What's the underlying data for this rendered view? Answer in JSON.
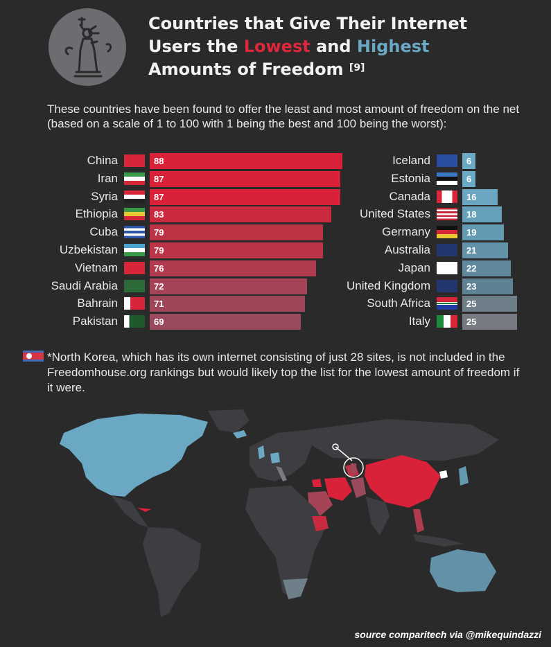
{
  "header": {
    "title_line1": "Countries that Give Their Internet",
    "title_line2_pre": "Users the ",
    "title_low": "Lowest",
    "title_and": " and ",
    "title_high": "Highest",
    "title_line3": "Amounts of Freedom ",
    "title_ref": "[9]",
    "intro": "These countries have been found to offer the least and most amount of freedom on the net (based on a scale of 1 to 100 with 1 being the best and 100 being the worst):"
  },
  "chart_data": [
    {
      "type": "bar",
      "orientation": "horizontal",
      "categories": [
        "China",
        "Iran",
        "Syria",
        "Ethiopia",
        "Cuba",
        "Uzbekistan",
        "Vietnam",
        "Saudi Arabia",
        "Bahrain",
        "Pakistan"
      ],
      "values": [
        88,
        87,
        87,
        83,
        79,
        79,
        76,
        72,
        71,
        69
      ],
      "colors": [
        "#d9213a",
        "#d9213a",
        "#d9213a",
        "#c92a3f",
        "#bd3346",
        "#bb3447",
        "#b03a4e",
        "#a54456",
        "#a04659",
        "#9b495d"
      ]
    },
    {
      "type": "bar",
      "orientation": "horizontal",
      "categories": [
        "Iceland",
        "Estonia",
        "Canada",
        "United States",
        "Germany",
        "Australia",
        "Japan",
        "United Kingdom",
        "South Africa",
        "Italy"
      ],
      "values": [
        6,
        6,
        16,
        18,
        19,
        21,
        22,
        23,
        25,
        25
      ],
      "colors": [
        "#6aaac6",
        "#6aaac6",
        "#6aa6c2",
        "#67a0bb",
        "#6499b2",
        "#6291a8",
        "#60899e",
        "#5e8194",
        "#6f7f8a",
        "#777a80"
      ]
    }
  ],
  "flags": {
    "China": "flag-china-icon",
    "Iran": "flag-iran-icon",
    "Syria": "flag-syria-icon",
    "Ethiopia": "flag-ethiopia-icon",
    "Cuba": "flag-cuba-icon",
    "Uzbekistan": "flag-uzbekistan-icon",
    "Vietnam": "flag-vietnam-icon",
    "Saudi Arabia": "flag-saudi-arabia-icon",
    "Bahrain": "flag-bahrain-icon",
    "Pakistan": "flag-pakistan-icon",
    "Iceland": "flag-iceland-icon",
    "Estonia": "flag-estonia-icon",
    "Canada": "flag-canada-icon",
    "United States": "flag-united-states-icon",
    "Germany": "flag-germany-icon",
    "Australia": "flag-australia-icon",
    "Japan": "flag-japan-icon",
    "United Kingdom": "flag-united-kingdom-icon",
    "South Africa": "flag-south-africa-icon",
    "Italy": "flag-italy-icon"
  },
  "note": {
    "text": "*North Korea, which has its own internet consisting of just 28 sites, is not included in the Freedomhouse.org rankings but would likely top the list for the lowest amount of freedom if it were.",
    "flag_icon": "flag-north-korea-icon"
  },
  "map": {
    "icon": "world-map-icon",
    "colors": {
      "land": "#3e3d41",
      "highest_freedom": "#6aa8c4",
      "lowest_freedom": "#d9213a",
      "background": "#2a2a2b"
    }
  },
  "logo": {
    "icon": "statue-of-liberty-icon"
  },
  "footer": {
    "source": "source comparitech via @mikequindazzi"
  }
}
